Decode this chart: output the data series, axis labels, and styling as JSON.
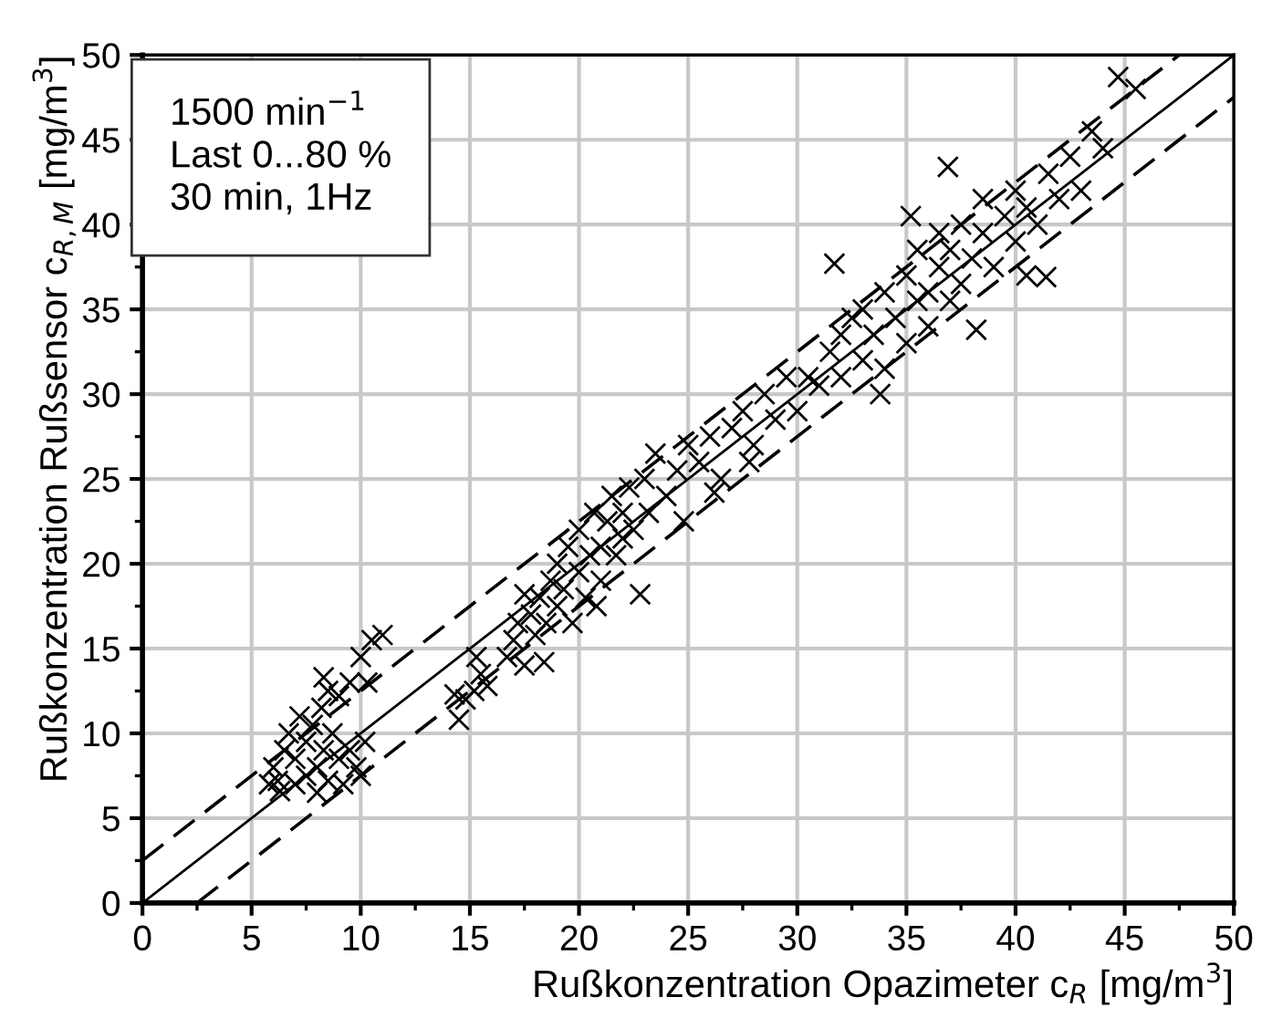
{
  "chart_data": {
    "type": "scatter",
    "xlabel": "Rußkonzentration Opazimeter c$_{R}$ [mg/m$^{3}$]",
    "ylabel": "Rußkonzentration Rußsensor c$_{R,M}$ [mg/m$^{3}$]",
    "annotations": [
      "1500 min$^{−1}$\nLast 0...80 %\n30 min, 1Hz"
    ],
    "xlim": [
      0,
      50
    ],
    "ylim": [
      0,
      50
    ],
    "xticks": [
      0,
      5,
      10,
      15,
      20,
      25,
      30,
      35,
      40,
      45,
      50
    ],
    "yticks": [
      0,
      5,
      10,
      15,
      20,
      25,
      30,
      35,
      40,
      45,
      50
    ],
    "grid": true,
    "legend": false,
    "marker": "cross",
    "series": [
      {
        "color": "#000000",
        "x": [
          5.8,
          6,
          6.2,
          6.5,
          6.7,
          7,
          7,
          7.2,
          7.5,
          7.5,
          7.8,
          8,
          8,
          8.3,
          8.5,
          8.7,
          9,
          9.2,
          9.5,
          9.8,
          10,
          6.3,
          8.2,
          8.5,
          8.3,
          9.5,
          10,
          10.5,
          11,
          10.3,
          9,
          10.2,
          14.5,
          14.8,
          15.2,
          15.5,
          15.8,
          14.3,
          15.3,
          16.7,
          17,
          17.2,
          17.5,
          17.8,
          18,
          18.2,
          18.5,
          18.7,
          19,
          19,
          19.3,
          19.5,
          19.7,
          20,
          20,
          20.3,
          20.5,
          20.7,
          21,
          21,
          21.3,
          21.5,
          21.7,
          22,
          22,
          22.3,
          22.5,
          22.8,
          23,
          23.2,
          18.4,
          17.5,
          20.8,
          23.5,
          24,
          24.5,
          25,
          25.5,
          26,
          26.5,
          27,
          27.5,
          28,
          28.5,
          29,
          29.5,
          24.8,
          26.2,
          27.8,
          30,
          30.5,
          31,
          31.5,
          32,
          32,
          32.5,
          33,
          33,
          33.5,
          34,
          34,
          34.5,
          35,
          35,
          35.5,
          35.5,
          36,
          36,
          36.5,
          36.5,
          37,
          37,
          37.5,
          37.5,
          38,
          38.5,
          38.5,
          39,
          39.5,
          40,
          40,
          40.5,
          41,
          41.4,
          40.5,
          41.5,
          42,
          42.5,
          43,
          43.5,
          44,
          44.7,
          45.5,
          36.9,
          35.2,
          31.7,
          33.8,
          38.2
        ],
        "values": [
          7,
          8,
          7.2,
          9,
          10,
          7,
          8.5,
          11,
          9.5,
          7.5,
          10.5,
          8,
          6.5,
          9,
          7.2,
          10,
          8.5,
          7,
          9,
          8,
          7.5,
          6.6,
          11.5,
          12.5,
          13.3,
          13,
          14.5,
          15.5,
          15.8,
          13,
          12.2,
          9.5,
          10.8,
          12,
          12.5,
          13.5,
          12.8,
          12.3,
          14.5,
          14.5,
          15.5,
          16.5,
          14,
          17,
          15.8,
          18,
          16.5,
          19,
          17.5,
          20,
          18.5,
          21,
          16.5,
          19.5,
          22,
          18,
          20.5,
          23,
          21,
          19,
          22.5,
          24,
          20.5,
          23,
          21.5,
          24.5,
          22,
          18.2,
          25,
          23,
          14.2,
          18.2,
          17.5,
          26.5,
          24,
          25.5,
          27,
          26,
          27.5,
          25,
          28,
          29,
          27,
          30,
          28.5,
          31,
          22.5,
          24.2,
          26,
          29,
          31,
          30.5,
          32.5,
          31,
          33.5,
          34.5,
          32,
          35,
          33.5,
          36,
          31.5,
          34.5,
          37,
          33,
          35.5,
          38.5,
          36,
          34,
          37.5,
          39.5,
          35.5,
          38.5,
          40,
          36.5,
          38,
          39.5,
          41.5,
          37.5,
          40.5,
          39,
          42,
          41,
          40,
          36.9,
          37,
          43,
          41.5,
          44,
          42,
          45.5,
          44.5,
          48.7,
          48,
          43.4,
          40.5,
          37.7,
          30,
          33.8
        ]
      },
      {
        "type": "line",
        "color": "#000000",
        "line_style": "solid",
        "marker": "none",
        "x": [
          0,
          50
        ],
        "values": [
          0,
          50
        ]
      },
      {
        "type": "line",
        "color": "#000000",
        "line_style": "dashed",
        "marker": "none",
        "x": [
          0,
          47.5
        ],
        "values": [
          2.5,
          50
        ]
      },
      {
        "type": "line",
        "color": "#000000",
        "line_style": "dashed",
        "marker": "none",
        "x": [
          2.5,
          50
        ],
        "values": [
          0,
          47.5
        ]
      }
    ]
  }
}
